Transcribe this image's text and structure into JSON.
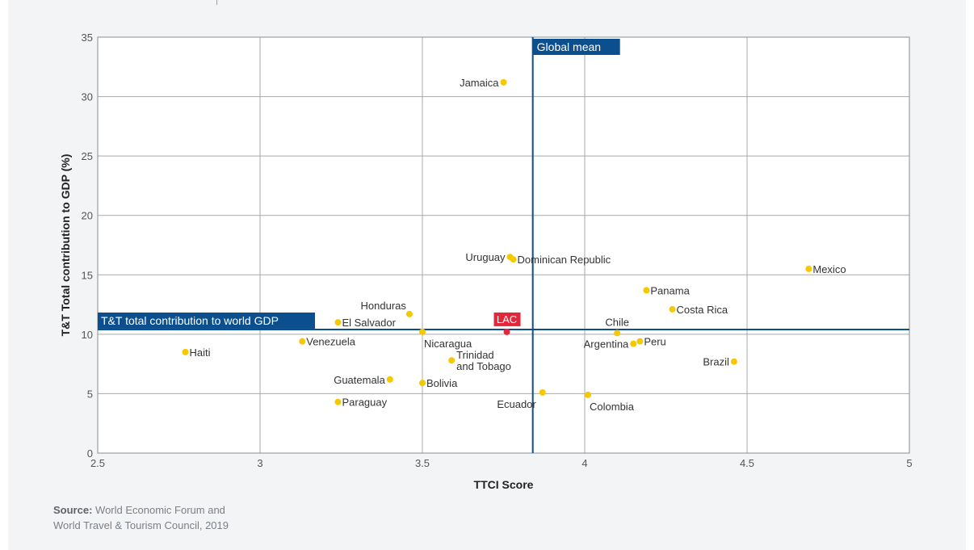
{
  "chart_data": {
    "type": "scatter",
    "xlabel": "TTCI Score",
    "ylabel": "T&T Total contribution to GDP (%)",
    "xlim": [
      2.5,
      5
    ],
    "ylim": [
      0,
      35
    ],
    "x_ticks": [
      "2.5",
      "3",
      "3.5",
      "4",
      "4.5",
      "5"
    ],
    "y_ticks": [
      "0",
      "5",
      "10",
      "15",
      "20",
      "25",
      "30",
      "35"
    ],
    "grid": true,
    "point_color": "#f5c800",
    "highlight_color": "#e2273b",
    "line_color": "#0b4f8f",
    "reference_lines": [
      {
        "label": "Global mean",
        "axis": "x",
        "value": 3.84
      },
      {
        "label": "T&T total contribution to world GDP",
        "axis": "y",
        "value": 10.4
      }
    ],
    "points": [
      {
        "label": "Haiti",
        "x": 2.77,
        "y": 8.5,
        "anchor": "right"
      },
      {
        "label": "Venezuela",
        "x": 3.13,
        "y": 9.4,
        "anchor": "right"
      },
      {
        "label": "El Salvador",
        "x": 3.24,
        "y": 11.0,
        "anchor": "right"
      },
      {
        "label": "Honduras",
        "x": 3.46,
        "y": 11.7,
        "anchor": "above-left"
      },
      {
        "label": "Nicaragua",
        "x": 3.5,
        "y": 10.2,
        "anchor": "below-right"
      },
      {
        "label": "Guatemala",
        "x": 3.4,
        "y": 6.2,
        "anchor": "left"
      },
      {
        "label": "Paraguay",
        "x": 3.24,
        "y": 4.3,
        "anchor": "right"
      },
      {
        "label": "Bolivia",
        "x": 3.5,
        "y": 5.9,
        "anchor": "right"
      },
      {
        "label": "Trinidad and Tobago",
        "x": 3.59,
        "y": 7.8,
        "anchor": "right-multiline",
        "lines": [
          "Trinidad",
          "and Tobago"
        ]
      },
      {
        "label": "Jamaica",
        "x": 3.75,
        "y": 31.2,
        "anchor": "left"
      },
      {
        "label": "Uruguay",
        "x": 3.77,
        "y": 16.5,
        "anchor": "left"
      },
      {
        "label": "Dominican Republic",
        "x": 3.78,
        "y": 16.3,
        "anchor": "right"
      },
      {
        "label": "LAC",
        "x": 3.76,
        "y": 10.2,
        "anchor": "box-above",
        "highlight": true
      },
      {
        "label": "Ecuador",
        "x": 3.87,
        "y": 5.1,
        "anchor": "below-left"
      },
      {
        "label": "Colombia",
        "x": 4.01,
        "y": 4.9,
        "anchor": "below-right"
      },
      {
        "label": "Chile",
        "x": 4.1,
        "y": 10.1,
        "anchor": "above"
      },
      {
        "label": "Argentina",
        "x": 4.15,
        "y": 9.2,
        "anchor": "left"
      },
      {
        "label": "Peru",
        "x": 4.17,
        "y": 9.4,
        "anchor": "right"
      },
      {
        "label": "Panama",
        "x": 4.19,
        "y": 13.7,
        "anchor": "right"
      },
      {
        "label": "Costa Rica",
        "x": 4.27,
        "y": 12.1,
        "anchor": "right"
      },
      {
        "label": "Brazil",
        "x": 4.46,
        "y": 7.7,
        "anchor": "left"
      },
      {
        "label": "Mexico",
        "x": 4.69,
        "y": 15.5,
        "anchor": "right"
      }
    ]
  },
  "source": {
    "label": "Source:",
    "line1": "World Economic Forum and",
    "line2": "World Travel & Tourism Council, 2019"
  }
}
